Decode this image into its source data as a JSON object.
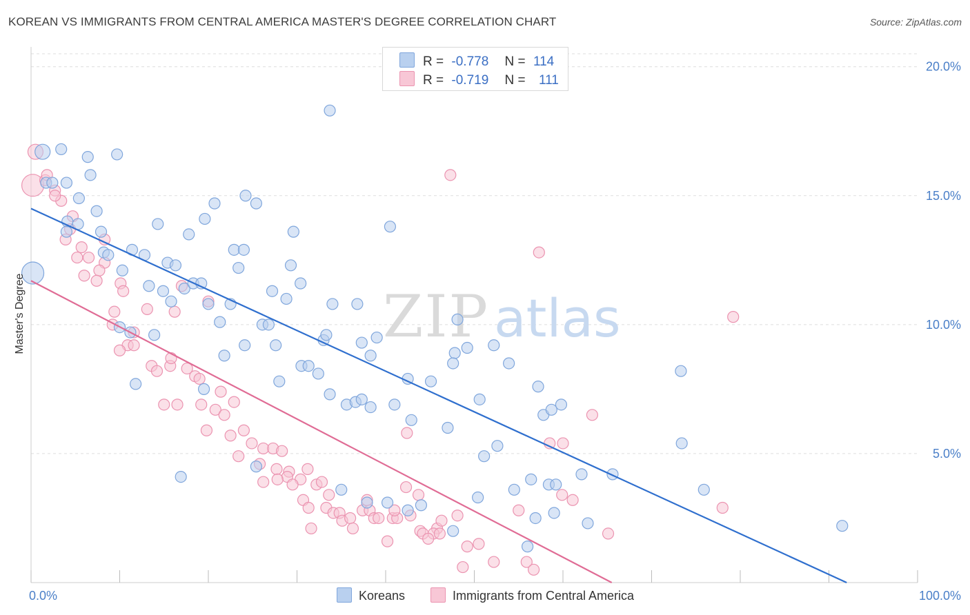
{
  "title": "KOREAN VS IMMIGRANTS FROM CENTRAL AMERICA MASTER'S DEGREE CORRELATION CHART",
  "source": "Source: ZipAtlas.com",
  "watermark": {
    "zip": "ZIP",
    "atlas": "atlas"
  },
  "legend": {
    "r_label": "R =",
    "n_label": "N =",
    "series": [
      {
        "name": "Koreans",
        "r": "-0.778",
        "n": "114",
        "fill": "#b9d0ef",
        "stroke": "#7fa6dc"
      },
      {
        "name": "Immigrants from Central America",
        "r": "-0.719",
        "n": "111",
        "fill": "#f8c7d6",
        "stroke": "#eb93b0"
      }
    ]
  },
  "colors": {
    "blue_line": "#2f6fce",
    "pink_line": "#e06c95",
    "tick_text": "#4a7fc8",
    "grid": "#dddddd"
  },
  "chart_data": {
    "type": "scatter",
    "title": "KOREAN VS IMMIGRANTS FROM CENTRAL AMERICA MASTER'S DEGREE CORRELATION CHART",
    "xlabel": "",
    "ylabel": "Master's Degree",
    "xlim": [
      0,
      100
    ],
    "ylim": [
      0,
      20.5
    ],
    "x_tick_labels": [
      "0.0%",
      "100.0%"
    ],
    "y_ticks": [
      5,
      10,
      15,
      20
    ],
    "y_tick_labels": [
      "5.0%",
      "10.0%",
      "15.0%",
      "20.0%"
    ],
    "grid": "horizontal dashed",
    "legend_position": "top-center",
    "series": [
      {
        "name": "Koreans",
        "trend": [
          [
            0,
            14.5
          ],
          [
            92,
            0
          ]
        ],
        "points": [
          [
            0.2,
            12.0,
            3
          ],
          [
            1.3,
            16.7,
            2
          ],
          [
            3.4,
            16.8,
            1
          ],
          [
            6.4,
            16.5,
            1
          ],
          [
            9.7,
            16.6,
            1
          ],
          [
            1.7,
            15.5,
            1
          ],
          [
            2.4,
            15.5,
            1
          ],
          [
            4.0,
            15.5,
            1
          ],
          [
            5.4,
            14.9,
            1
          ],
          [
            6.7,
            15.8,
            1
          ],
          [
            7.4,
            14.4,
            1
          ],
          [
            4.1,
            14.0,
            1
          ],
          [
            5.3,
            13.9,
            1
          ],
          [
            4.0,
            13.6,
            1
          ],
          [
            7.9,
            13.6,
            1
          ],
          [
            8.2,
            12.8,
            1
          ],
          [
            8.7,
            12.7,
            1
          ],
          [
            10.3,
            12.1,
            1
          ],
          [
            11.4,
            12.9,
            1
          ],
          [
            12.8,
            12.7,
            1
          ],
          [
            14.3,
            13.9,
            1
          ],
          [
            15.4,
            12.4,
            1
          ],
          [
            16.3,
            12.3,
            1
          ],
          [
            17.8,
            13.5,
            1
          ],
          [
            19.6,
            14.1,
            1
          ],
          [
            20.7,
            14.7,
            1
          ],
          [
            22.9,
            12.9,
            1
          ],
          [
            24.0,
            12.9,
            1
          ],
          [
            23.4,
            12.2,
            1
          ],
          [
            24.2,
            15.0,
            1
          ],
          [
            25.4,
            14.7,
            1
          ],
          [
            29.3,
            12.3,
            1
          ],
          [
            29.6,
            13.6,
            1
          ],
          [
            33.7,
            18.3,
            1
          ],
          [
            40.5,
            13.8,
            1
          ],
          [
            13.3,
            11.5,
            1
          ],
          [
            14.9,
            11.3,
            1
          ],
          [
            15.8,
            10.9,
            1
          ],
          [
            17.3,
            11.4,
            1
          ],
          [
            18.3,
            11.6,
            1
          ],
          [
            19.2,
            11.6,
            1
          ],
          [
            20.0,
            10.8,
            1
          ],
          [
            22.5,
            10.8,
            1
          ],
          [
            21.3,
            10.1,
            1
          ],
          [
            10.0,
            9.9,
            1
          ],
          [
            11.2,
            9.7,
            1
          ],
          [
            13.9,
            9.6,
            1
          ],
          [
            11.8,
            7.7,
            1
          ],
          [
            26.1,
            10.0,
            1
          ],
          [
            26.8,
            10.0,
            1
          ],
          [
            27.2,
            11.3,
            1
          ],
          [
            28.8,
            11.0,
            1
          ],
          [
            30.4,
            11.6,
            1
          ],
          [
            34.0,
            10.8,
            1
          ],
          [
            36.8,
            10.8,
            1
          ],
          [
            24.1,
            9.2,
            1
          ],
          [
            21.8,
            8.8,
            1
          ],
          [
            27.6,
            9.2,
            1
          ],
          [
            33.0,
            9.4,
            1
          ],
          [
            33.3,
            9.6,
            1
          ],
          [
            37.3,
            9.3,
            1
          ],
          [
            38.3,
            8.8,
            1
          ],
          [
            39.0,
            9.5,
            1
          ],
          [
            30.5,
            8.4,
            1
          ],
          [
            31.3,
            8.4,
            1
          ],
          [
            32.4,
            8.1,
            1
          ],
          [
            28.0,
            7.8,
            1
          ],
          [
            19.5,
            7.5,
            1
          ],
          [
            33.7,
            7.3,
            1
          ],
          [
            35.6,
            6.9,
            1
          ],
          [
            36.6,
            7.0,
            1
          ],
          [
            37.3,
            7.1,
            1
          ],
          [
            38.3,
            6.8,
            1
          ],
          [
            41.0,
            6.9,
            1
          ],
          [
            42.5,
            7.9,
            1
          ],
          [
            42.9,
            6.3,
            1
          ],
          [
            45.1,
            7.8,
            1
          ],
          [
            48.1,
            10.2,
            1
          ],
          [
            47.8,
            8.9,
            1
          ],
          [
            47.6,
            8.5,
            1
          ],
          [
            49.2,
            9.1,
            1
          ],
          [
            52.2,
            9.2,
            1
          ],
          [
            53.9,
            8.5,
            1
          ],
          [
            50.6,
            7.1,
            1
          ],
          [
            57.2,
            7.6,
            1
          ],
          [
            57.8,
            6.5,
            1
          ],
          [
            58.7,
            6.7,
            1
          ],
          [
            59.8,
            6.9,
            1
          ],
          [
            47.0,
            6.0,
            1
          ],
          [
            51.1,
            4.9,
            1
          ],
          [
            52.6,
            5.3,
            1
          ],
          [
            56.4,
            4.0,
            1
          ],
          [
            58.4,
            3.8,
            1
          ],
          [
            59.2,
            3.8,
            1
          ],
          [
            62.1,
            4.2,
            1
          ],
          [
            65.6,
            4.2,
            1
          ],
          [
            73.4,
            5.4,
            1
          ],
          [
            73.3,
            8.2,
            1
          ],
          [
            75.9,
            3.6,
            1
          ],
          [
            91.5,
            2.2,
            1
          ],
          [
            16.9,
            4.1,
            1
          ],
          [
            35.0,
            3.6,
            1
          ],
          [
            40.2,
            3.1,
            1
          ],
          [
            44.0,
            3.0,
            1
          ],
          [
            50.4,
            3.3,
            1
          ],
          [
            54.5,
            3.6,
            1
          ],
          [
            56.9,
            2.5,
            1
          ],
          [
            59.0,
            2.7,
            1
          ],
          [
            62.8,
            2.3,
            1
          ],
          [
            47.6,
            2.0,
            1
          ],
          [
            56.0,
            1.4,
            1
          ],
          [
            42.5,
            2.8,
            1
          ],
          [
            37.9,
            3.1,
            1
          ],
          [
            25.4,
            4.5,
            1
          ]
        ]
      },
      {
        "name": "Immigrants from Central America",
        "trend": [
          [
            0,
            11.7
          ],
          [
            65.5,
            0
          ]
        ],
        "points": [
          [
            0.2,
            15.4,
            3
          ],
          [
            0.5,
            16.7,
            2
          ],
          [
            1.6,
            15.6,
            1
          ],
          [
            1.8,
            15.8,
            1
          ],
          [
            2.7,
            15.2,
            1
          ],
          [
            3.4,
            14.8,
            1
          ],
          [
            2.7,
            15.0,
            1
          ],
          [
            4.7,
            14.2,
            1
          ],
          [
            4.4,
            13.7,
            1
          ],
          [
            3.9,
            13.3,
            1
          ],
          [
            5.7,
            13.0,
            1
          ],
          [
            5.2,
            12.6,
            1
          ],
          [
            6.5,
            12.6,
            1
          ],
          [
            8.3,
            13.3,
            1
          ],
          [
            8.3,
            12.4,
            1
          ],
          [
            7.7,
            12.1,
            1
          ],
          [
            6.0,
            11.9,
            1
          ],
          [
            7.4,
            11.7,
            1
          ],
          [
            10.1,
            11.6,
            1
          ],
          [
            10.4,
            11.3,
            1
          ],
          [
            9.4,
            10.5,
            1
          ],
          [
            11.6,
            9.7,
            1
          ],
          [
            9.2,
            10.0,
            1
          ],
          [
            13.1,
            10.6,
            1
          ],
          [
            16.2,
            10.5,
            1
          ],
          [
            17.0,
            11.5,
            1
          ],
          [
            20.0,
            10.9,
            1
          ],
          [
            10.9,
            9.2,
            1
          ],
          [
            11.6,
            9.2,
            1
          ],
          [
            10.0,
            9.0,
            1
          ],
          [
            13.6,
            8.4,
            1
          ],
          [
            14.2,
            8.2,
            1
          ],
          [
            15.7,
            8.4,
            1
          ],
          [
            15.8,
            8.7,
            1
          ],
          [
            17.6,
            8.3,
            1
          ],
          [
            18.5,
            8.0,
            1
          ],
          [
            19.0,
            7.9,
            1
          ],
          [
            21.4,
            7.4,
            1
          ],
          [
            15.0,
            6.9,
            1
          ],
          [
            16.5,
            6.9,
            1
          ],
          [
            19.2,
            6.9,
            1
          ],
          [
            20.8,
            6.7,
            1
          ],
          [
            22.9,
            7.0,
            1
          ],
          [
            21.8,
            6.5,
            1
          ],
          [
            19.8,
            5.9,
            1
          ],
          [
            22.5,
            5.7,
            1
          ],
          [
            24.0,
            5.9,
            1
          ],
          [
            24.9,
            5.4,
            1
          ],
          [
            23.4,
            4.9,
            1
          ],
          [
            26.2,
            5.2,
            1
          ],
          [
            27.3,
            5.2,
            1
          ],
          [
            28.3,
            5.1,
            1
          ],
          [
            25.8,
            4.6,
            1
          ],
          [
            27.7,
            4.4,
            1
          ],
          [
            29.1,
            4.3,
            1
          ],
          [
            28.9,
            4.1,
            1
          ],
          [
            30.4,
            4.0,
            1
          ],
          [
            27.8,
            4.0,
            1
          ],
          [
            26.2,
            3.9,
            1
          ],
          [
            29.5,
            3.8,
            1
          ],
          [
            31.2,
            4.4,
            1
          ],
          [
            32.2,
            3.8,
            1
          ],
          [
            32.8,
            3.9,
            1
          ],
          [
            33.6,
            3.4,
            1
          ],
          [
            30.7,
            3.2,
            1
          ],
          [
            31.3,
            2.9,
            1
          ],
          [
            31.6,
            2.1,
            1
          ],
          [
            33.3,
            2.9,
            1
          ],
          [
            34.1,
            2.7,
            1
          ],
          [
            34.8,
            2.7,
            1
          ],
          [
            35.1,
            2.4,
            1
          ],
          [
            36.0,
            2.5,
            1
          ],
          [
            36.3,
            2.1,
            1
          ],
          [
            37.4,
            2.8,
            1
          ],
          [
            38.2,
            2.8,
            1
          ],
          [
            37.9,
            3.2,
            1
          ],
          [
            38.7,
            2.5,
            1
          ],
          [
            39.2,
            2.5,
            1
          ],
          [
            40.2,
            1.6,
            1
          ],
          [
            40.8,
            2.5,
            1
          ],
          [
            41.3,
            2.5,
            1
          ],
          [
            41.0,
            2.8,
            1
          ],
          [
            42.3,
            3.7,
            1
          ],
          [
            43.7,
            3.4,
            1
          ],
          [
            42.8,
            2.6,
            1
          ],
          [
            42.4,
            5.8,
            1
          ],
          [
            43.9,
            2.0,
            1
          ],
          [
            45.8,
            2.1,
            1
          ],
          [
            44.2,
            1.9,
            1
          ],
          [
            45.4,
            1.9,
            1
          ],
          [
            46.1,
            1.9,
            1
          ],
          [
            44.8,
            1.7,
            1
          ],
          [
            46.3,
            2.4,
            1
          ],
          [
            48.1,
            2.6,
            1
          ],
          [
            49.2,
            1.4,
            1
          ],
          [
            50.5,
            1.5,
            1
          ],
          [
            48.7,
            0.6,
            1
          ],
          [
            52.2,
            0.8,
            1
          ],
          [
            55.0,
            2.8,
            1
          ],
          [
            55.9,
            0.8,
            1
          ],
          [
            56.7,
            0.5,
            1
          ],
          [
            58.5,
            5.4,
            1
          ],
          [
            59.9,
            3.4,
            1
          ],
          [
            61.1,
            3.2,
            1
          ],
          [
            63.3,
            6.5,
            1
          ],
          [
            65.1,
            1.9,
            1
          ],
          [
            47.3,
            15.8,
            1
          ],
          [
            57.3,
            12.8,
            1
          ],
          [
            78.0,
            2.9,
            1
          ],
          [
            79.2,
            10.3,
            1
          ],
          [
            60.0,
            5.4,
            1
          ]
        ]
      }
    ]
  }
}
